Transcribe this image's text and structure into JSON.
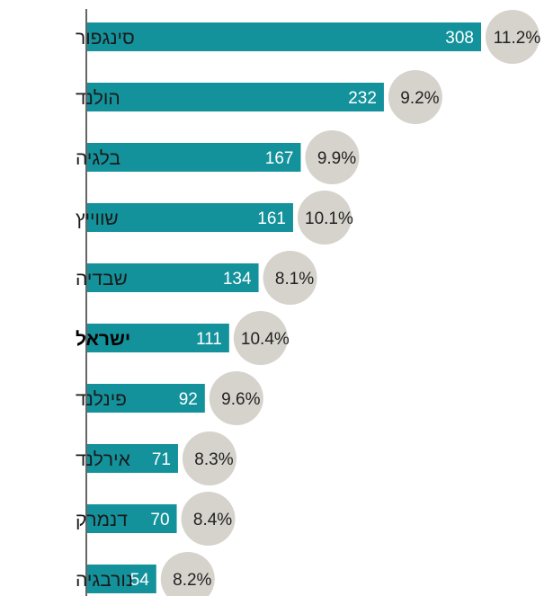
{
  "colors": {
    "bar": "#14929c",
    "bubble": "#d6d3cd",
    "axis": "#333333"
  },
  "chart_data": {
    "type": "bar",
    "orientation": "horizontal",
    "categories": [
      "סינגפור",
      "הולנד",
      "בלגיה",
      "שווייץ",
      "שבדיה",
      "ישראל",
      "פינלנד",
      "אירלנד",
      "דנמרק",
      "נורבגיה"
    ],
    "highlighted_category": "ישראל",
    "values": [
      308,
      232,
      167,
      161,
      134,
      111,
      92,
      71,
      70,
      54
    ],
    "percentages": [
      "11.2%",
      "9.2%",
      "9.9%",
      "10.1%",
      "8.1%",
      "10.4%",
      "9.6%",
      "8.3%",
      "8.4%",
      "8.2%"
    ],
    "xlim": [
      0,
      308
    ],
    "title": "",
    "xlabel": "",
    "ylabel": "",
    "grid": false,
    "legend": "none"
  }
}
